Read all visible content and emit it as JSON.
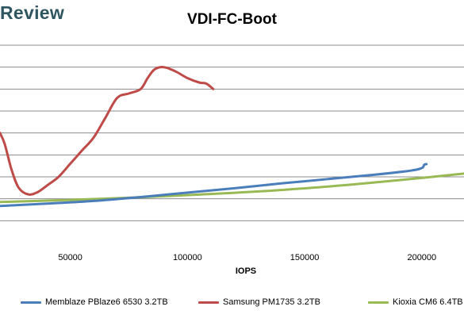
{
  "logo": "Review",
  "chart_data": {
    "type": "line",
    "title": "VDI-FC-Boot",
    "xlabel": "IOPS",
    "ylabel": "",
    "xlim": [
      20000,
      218000
    ],
    "ylim": [
      0,
      9
    ],
    "x_ticks": [
      50000,
      100000,
      150000,
      200000
    ],
    "x_tick_labels": [
      "50000",
      "100000",
      "150000",
      "200000"
    ],
    "y_gridlines": [
      1,
      2,
      3,
      4,
      5,
      6,
      7,
      8,
      9
    ],
    "grid": "horizontal",
    "legend_position": "bottom",
    "series": [
      {
        "name": "Memblaze PBlaze6 6530 3.2TB",
        "color": "#4a7ebb",
        "x": [
          20000,
          40000,
          60000,
          80000,
          100000,
          120000,
          140000,
          160000,
          180000,
          195000,
          200000,
          201000,
          202000
        ],
        "y": [
          1.67,
          1.78,
          1.9,
          2.08,
          2.28,
          2.48,
          2.7,
          2.9,
          3.1,
          3.28,
          3.4,
          3.55,
          3.58
        ]
      },
      {
        "name": "Samsung PM1735 3.2TB",
        "color": "#be4b48",
        "x": [
          20000,
          22000,
          25000,
          28000,
          32000,
          36000,
          40000,
          45000,
          50000,
          55000,
          60000,
          65000,
          70000,
          75000,
          80000,
          83000,
          86000,
          90000,
          95000,
          100000,
          105000,
          108000,
          111000
        ],
        "y": [
          5.0,
          4.5,
          3.3,
          2.5,
          2.2,
          2.3,
          2.6,
          3.0,
          3.6,
          4.2,
          4.8,
          5.7,
          6.6,
          6.8,
          7.0,
          7.5,
          7.9,
          8.0,
          7.8,
          7.5,
          7.3,
          7.25,
          7.0
        ]
      },
      {
        "name": "Kioxia CM6 6.4TB",
        "color": "#98b954",
        "x": [
          20000,
          50000,
          80000,
          110000,
          140000,
          170000,
          200000,
          218000
        ],
        "y": [
          1.85,
          1.95,
          2.07,
          2.22,
          2.4,
          2.65,
          2.95,
          3.15
        ]
      }
    ]
  }
}
